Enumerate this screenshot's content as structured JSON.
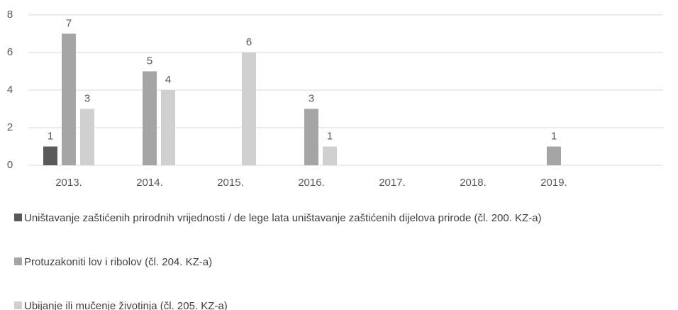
{
  "chart_data": {
    "type": "bar",
    "categories": [
      "2013.",
      "2014.",
      "2015.",
      "2016.",
      "2017.",
      "2018.",
      "2019."
    ],
    "series": [
      {
        "name": "Uništavanje zaštićenih prirodnih vrijednosti / de lege lata uništavanje zaštićenih dijelova prirode (čl. 200. KZ-a)",
        "color": "#595959",
        "values": [
          1,
          null,
          null,
          null,
          null,
          null,
          null
        ]
      },
      {
        "name": "Protuzakoniti lov i ribolov (čl. 204. KZ-a)",
        "color": "#a5a5a5",
        "values": [
          7,
          5,
          null,
          3,
          null,
          null,
          1
        ]
      },
      {
        "name": "Ubijanje ili mučenje životinja (čl. 205. KZ-a)",
        "color": "#d0d0d0",
        "values": [
          3,
          4,
          6,
          1,
          null,
          null,
          null
        ]
      }
    ],
    "ylim": [
      0,
      8
    ],
    "yticks": [
      0,
      2,
      4,
      6,
      8
    ],
    "grid": true,
    "legend": "bottom"
  }
}
